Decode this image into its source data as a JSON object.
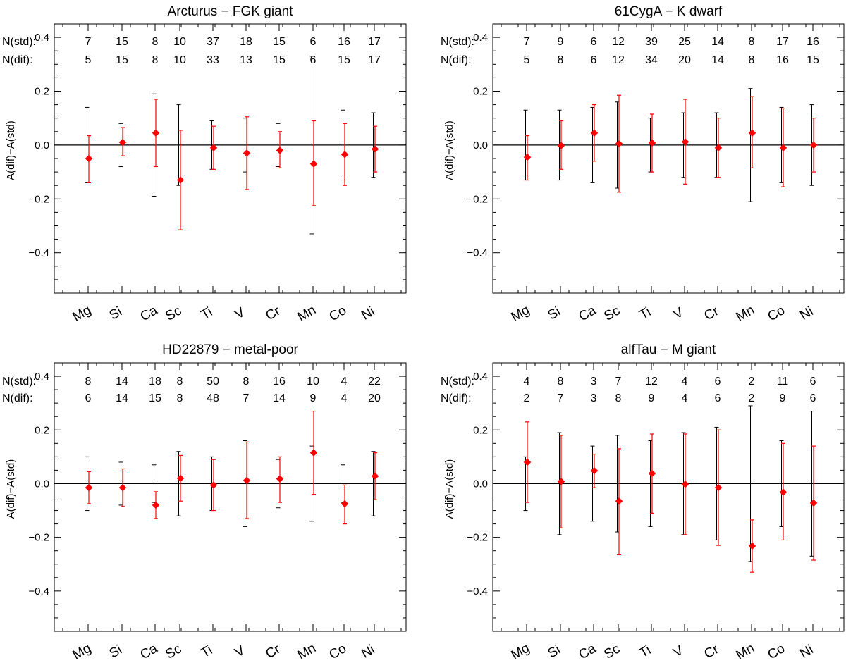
{
  "colors": {
    "std": "#000000",
    "dif": "#ff0000"
  },
  "categories": [
    "Mg",
    "Si",
    "Ca",
    "Sc",
    "Ti",
    "V",
    "Cr",
    "Mn",
    "Co",
    "Ni"
  ],
  "row_labels": {
    "std": "N(std):",
    "dif": "N(dif):"
  },
  "chart_data": [
    {
      "type": "scatter",
      "title": "Arcturus − FGK giant",
      "ylabel": "A(dif)−A(std)",
      "ylim": [
        -0.55,
        0.45
      ],
      "yticks": [
        0.4,
        0.2,
        0.0,
        -0.2,
        -0.4
      ],
      "yticklabels": [
        "0.4",
        "0.2",
        "0.0",
        "−0.2",
        "−0.4"
      ],
      "n_std": [
        7,
        15,
        8,
        10,
        37,
        18,
        15,
        6,
        16,
        17
      ],
      "n_dif": [
        5,
        15,
        8,
        10,
        33,
        13,
        15,
        6,
        15,
        17
      ],
      "values": [
        -0.05,
        0.01,
        0.045,
        -0.13,
        -0.01,
        -0.03,
        -0.02,
        -0.07,
        -0.035,
        -0.015
      ],
      "err_std": [
        0.14,
        0.08,
        0.19,
        0.15,
        0.09,
        0.1,
        0.08,
        0.33,
        0.13,
        0.12
      ],
      "err_dif_low": [
        -0.14,
        -0.04,
        -0.08,
        -0.315,
        -0.09,
        -0.165,
        -0.085,
        -0.225,
        -0.15,
        -0.1
      ],
      "err_dif_high": [
        0.035,
        0.065,
        0.17,
        0.055,
        0.07,
        0.105,
        0.05,
        0.09,
        0.08,
        0.07
      ]
    },
    {
      "type": "scatter",
      "title": "61CygA − K dwarf",
      "ylabel": "A(dif)−A(std)",
      "ylim": [
        -0.55,
        0.45
      ],
      "yticks": [
        0.4,
        0.2,
        0.0,
        -0.2,
        -0.4
      ],
      "yticklabels": [
        "0.4",
        "0.2",
        "0.0",
        "−0.2",
        "−0.4"
      ],
      "n_std": [
        7,
        9,
        6,
        12,
        39,
        25,
        14,
        8,
        17,
        16
      ],
      "n_dif": [
        5,
        8,
        6,
        12,
        34,
        20,
        14,
        8,
        16,
        15
      ],
      "values": [
        -0.045,
        -0.002,
        0.045,
        0.005,
        0.008,
        0.012,
        -0.01,
        0.045,
        -0.01,
        0.0
      ],
      "err_std": [
        0.13,
        0.13,
        0.14,
        0.16,
        0.1,
        0.12,
        0.12,
        0.21,
        0.14,
        0.15
      ],
      "err_dif_low": [
        -0.13,
        -0.09,
        -0.06,
        -0.175,
        -0.1,
        -0.145,
        -0.12,
        -0.085,
        -0.155,
        -0.1
      ],
      "err_dif_high": [
        0.035,
        0.09,
        0.15,
        0.185,
        0.115,
        0.17,
        0.1,
        0.18,
        0.135,
        0.1
      ]
    },
    {
      "type": "scatter",
      "title": "HD22879 − metal-poor",
      "ylabel": "A(dif)−A(std)",
      "ylim": [
        -0.55,
        0.45
      ],
      "yticks": [
        0.4,
        0.2,
        0.0,
        -0.2,
        -0.4
      ],
      "yticklabels": [
        "0.4",
        "0.2",
        "0.0",
        "−0.2",
        "−0.4"
      ],
      "n_std": [
        8,
        14,
        18,
        8,
        50,
        8,
        16,
        10,
        4,
        22
      ],
      "n_dif": [
        6,
        14,
        15,
        8,
        48,
        7,
        14,
        9,
        4,
        20
      ],
      "values": [
        -0.015,
        -0.015,
        -0.08,
        0.02,
        -0.005,
        0.012,
        0.018,
        0.115,
        -0.075,
        0.028
      ],
      "err_std": [
        0.1,
        0.08,
        0.07,
        0.12,
        0.1,
        0.16,
        0.09,
        0.14,
        0.07,
        0.12
      ],
      "err_dif_low": [
        -0.075,
        -0.085,
        -0.13,
        -0.065,
        -0.1,
        -0.13,
        -0.07,
        -0.04,
        -0.15,
        -0.06
      ],
      "err_dif_high": [
        0.045,
        0.055,
        -0.03,
        0.105,
        0.09,
        0.155,
        0.1,
        0.27,
        -0.005,
        0.115
      ]
    },
    {
      "type": "scatter",
      "title": "alfTau − M giant",
      "ylabel": "A(dif)−A(std)",
      "ylim": [
        -0.55,
        0.45
      ],
      "yticks": [
        0.4,
        0.2,
        0.0,
        -0.2,
        -0.4
      ],
      "yticklabels": [
        "0.4",
        "0.2",
        "0.0",
        "−0.2",
        "−0.4"
      ],
      "n_std": [
        4,
        8,
        3,
        7,
        12,
        4,
        6,
        2,
        11,
        6
      ],
      "n_dif": [
        2,
        7,
        3,
        8,
        9,
        4,
        6,
        2,
        9,
        6
      ],
      "values": [
        0.08,
        0.008,
        0.048,
        -0.065,
        0.038,
        -0.002,
        -0.015,
        -0.232,
        -0.032,
        -0.072
      ],
      "err_std": [
        0.1,
        0.19,
        0.14,
        0.18,
        0.16,
        0.19,
        0.21,
        0.29,
        0.16,
        0.27
      ],
      "err_dif_low": [
        -0.07,
        -0.165,
        -0.015,
        -0.265,
        -0.11,
        -0.19,
        -0.23,
        -0.33,
        -0.21,
        -0.285
      ],
      "err_dif_high": [
        0.23,
        0.18,
        0.11,
        0.13,
        0.185,
        0.185,
        0.2,
        -0.135,
        0.15,
        0.14
      ]
    }
  ]
}
